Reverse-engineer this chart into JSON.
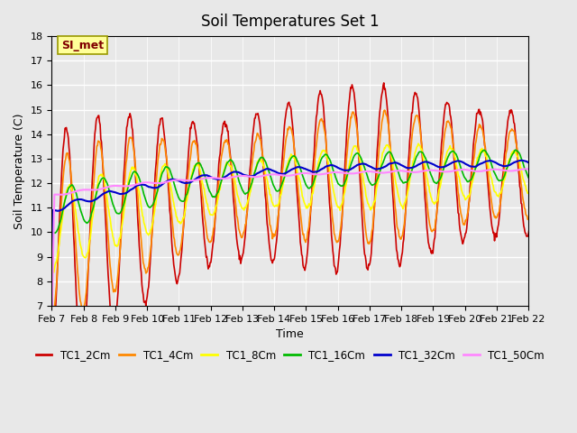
{
  "title": "Soil Temperatures Set 1",
  "xlabel": "Time",
  "ylabel": "Soil Temperature (C)",
  "ylim": [
    7.0,
    18.0
  ],
  "yticks": [
    7.0,
    8.0,
    9.0,
    10.0,
    11.0,
    12.0,
    13.0,
    14.0,
    15.0,
    16.0,
    17.0,
    18.0
  ],
  "background_color": "#e8e8e8",
  "plot_bg_color": "#e8e8e8",
  "annotation_text": "SI_met",
  "annotation_box_color": "#ffff99",
  "annotation_text_color": "#800000",
  "series_colors": {
    "TC1_2Cm": "#cc0000",
    "TC1_4Cm": "#ff8800",
    "TC1_8Cm": "#ffff00",
    "TC1_16Cm": "#00bb00",
    "TC1_32Cm": "#0000cc",
    "TC1_50Cm": "#ff88ff"
  },
  "xtick_labels": [
    "Feb 7",
    "Feb 8",
    "Feb 9",
    "Feb 10",
    "Feb 11",
    "Feb 12",
    "Feb 13",
    "Feb 14",
    "Feb 15",
    "Feb 16",
    "Feb 17",
    "Feb 18",
    "Feb 19",
    "Feb 20",
    "Feb 21",
    "Feb 22"
  ],
  "num_points_per_day": 48,
  "n_days": 16
}
